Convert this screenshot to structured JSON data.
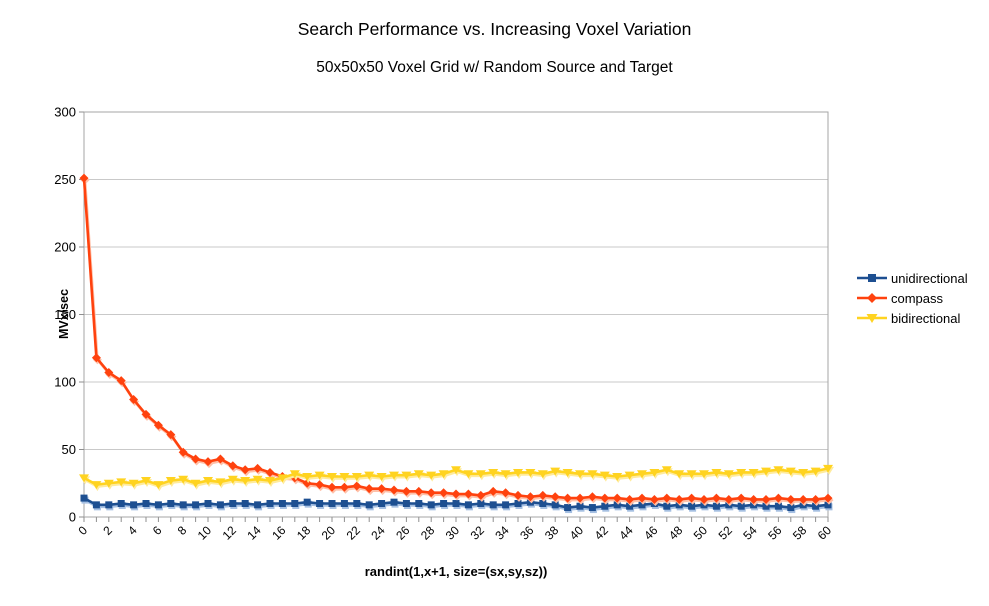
{
  "title": "Search Performance vs. Increasing Voxel Variation",
  "subtitle": "50x50x50 Voxel Grid w/ Random Source and Target",
  "chart_data": {
    "type": "line",
    "title": "Search Performance vs. Increasing Voxel Variation",
    "subtitle": "50x50x50 Voxel Grid w/ Random Source and Target",
    "xlabel": "randint(1,x+1, size=(sx,sy,sz))",
    "ylabel": "MVx/sec",
    "ylim": [
      0,
      300
    ],
    "yticks": [
      0,
      50,
      100,
      150,
      200,
      250,
      300
    ],
    "xtick_label_step": 2,
    "grid": true,
    "legend_position": "right",
    "x": [
      0,
      1,
      2,
      3,
      4,
      5,
      6,
      7,
      8,
      9,
      10,
      11,
      12,
      13,
      14,
      15,
      16,
      17,
      18,
      19,
      20,
      21,
      22,
      23,
      24,
      25,
      26,
      27,
      28,
      29,
      30,
      31,
      32,
      33,
      34,
      35,
      36,
      37,
      38,
      39,
      40,
      41,
      42,
      43,
      44,
      45,
      46,
      47,
      48,
      49,
      50,
      51,
      52,
      53,
      54,
      55,
      56,
      57,
      58,
      59,
      60
    ],
    "series": [
      {
        "name": "unidirectional",
        "color": "#1D4F91",
        "marker": "square",
        "values": [
          14,
          9,
          9,
          10,
          9,
          10,
          9,
          10,
          9,
          9,
          10,
          9,
          10,
          10,
          9,
          10,
          10,
          10,
          11,
          10,
          10,
          10,
          10,
          9,
          10,
          11,
          10,
          10,
          9,
          10,
          10,
          9,
          10,
          9,
          9,
          10,
          11,
          10,
          9,
          7,
          8,
          7,
          8,
          9,
          8,
          9,
          10,
          8,
          9,
          8,
          9,
          8,
          9,
          8,
          9,
          8,
          8,
          7,
          9,
          8,
          9
        ]
      },
      {
        "name": "compass",
        "color": "#FF420E",
        "marker": "diamond",
        "values": [
          251,
          118,
          107,
          101,
          87,
          76,
          68,
          61,
          48,
          43,
          41,
          43,
          38,
          35,
          36,
          33,
          30,
          29,
          25,
          24,
          22,
          22,
          23,
          21,
          21,
          20,
          19,
          19,
          18,
          18,
          17,
          17,
          16,
          19,
          18,
          16,
          15,
          16,
          15,
          14,
          14,
          15,
          14,
          14,
          13,
          14,
          13,
          14,
          13,
          14,
          13,
          14,
          13,
          14,
          13,
          13,
          14,
          13,
          13,
          13,
          14
        ]
      },
      {
        "name": "bidirectional",
        "color": "#FFD320",
        "marker": "triangle-down",
        "values": [
          29,
          24,
          25,
          26,
          25,
          27,
          24,
          27,
          28,
          25,
          27,
          26,
          28,
          27,
          28,
          27,
          29,
          32,
          30,
          31,
          30,
          30,
          30,
          31,
          30,
          31,
          31,
          32,
          31,
          32,
          35,
          32,
          32,
          33,
          32,
          33,
          33,
          32,
          34,
          33,
          32,
          32,
          31,
          30,
          31,
          32,
          33,
          35,
          32,
          32,
          32,
          33,
          32,
          33,
          33,
          34,
          35,
          34,
          33,
          34,
          36
        ]
      }
    ]
  },
  "colors": {
    "background": "#ffffff",
    "grid": "#c9c9c9",
    "plot_border": "#a6a6a6",
    "tick": "#8f8f8f",
    "text": "#000000"
  }
}
